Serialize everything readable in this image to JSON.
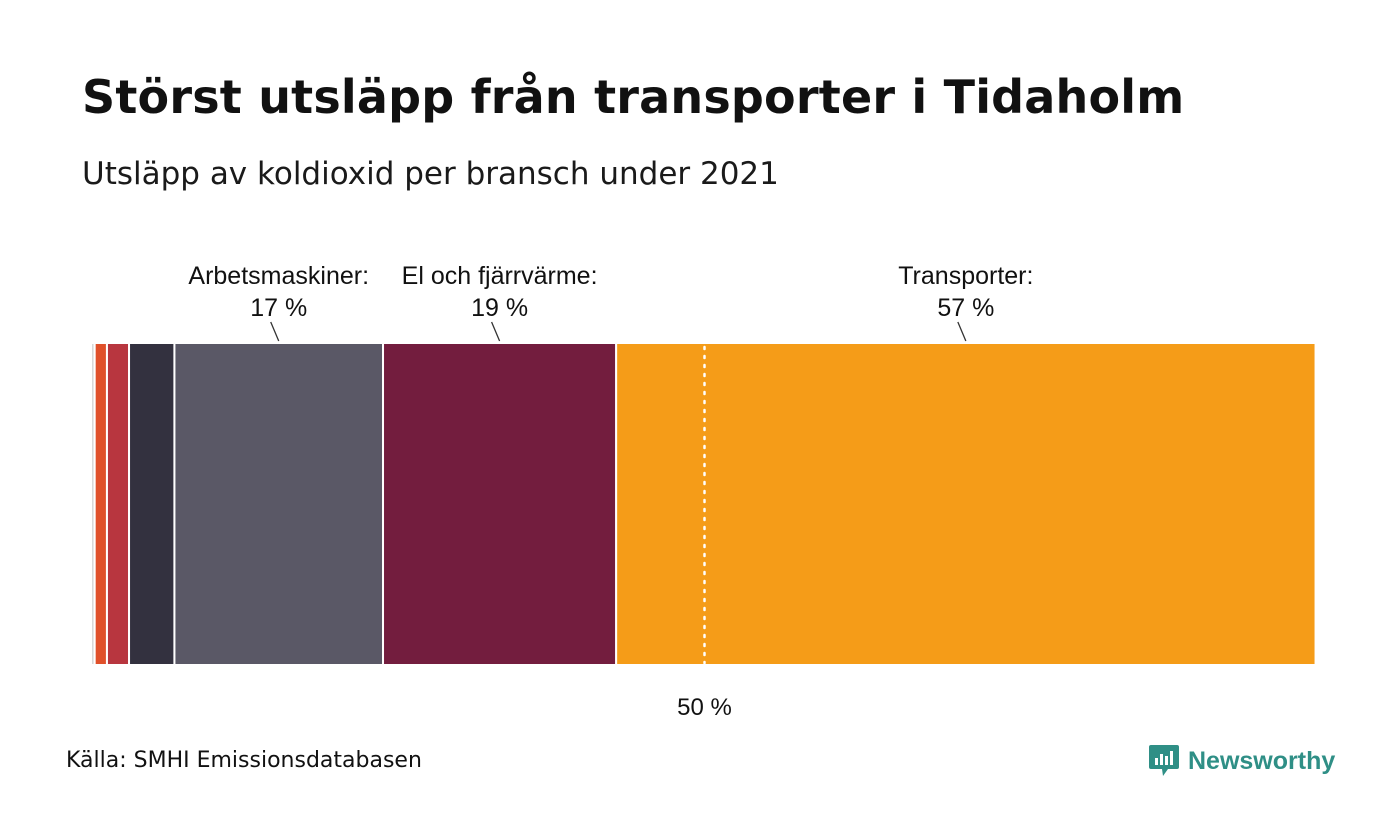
{
  "title": "Störst utsläpp från transporter i Tidaholm",
  "subtitle": "Utsläpp av koldioxid per bransch under 2021",
  "source": "Källa: SMHI Emissionsdatabasen",
  "brand": {
    "name": "Newsworthy",
    "icon": "newsworthy-logo-icon",
    "color": "#2f8f86"
  },
  "chart_data": {
    "type": "stacked-bar",
    "orientation": "horizontal",
    "unit": "%",
    "xlim": [
      0,
      100
    ],
    "segments": [
      {
        "value": 0.3,
        "color": "#d8d8d8"
      },
      {
        "value": 1.0,
        "color": "#e0502a"
      },
      {
        "value": 1.8,
        "color": "#b8363f"
      },
      {
        "value": 3.7,
        "color": "#33313f"
      },
      {
        "name": "Arbetsmaskiner",
        "value": 17,
        "label_line1": "Arbetsmaskiner:",
        "label_line2": "17 %",
        "color": "#5a5866"
      },
      {
        "name": "El och fjärrvärme",
        "value": 19,
        "label_line1": "El och fjärrvärme:",
        "label_line2": "19 %",
        "color": "#731d3e"
      },
      {
        "name": "Transporter",
        "value": 57,
        "label_line1": "Transporter:",
        "label_line2": "57 %",
        "color": "#f59c18"
      }
    ],
    "reference_line": {
      "value": 50,
      "label": "50 %",
      "style": "dotted"
    }
  }
}
